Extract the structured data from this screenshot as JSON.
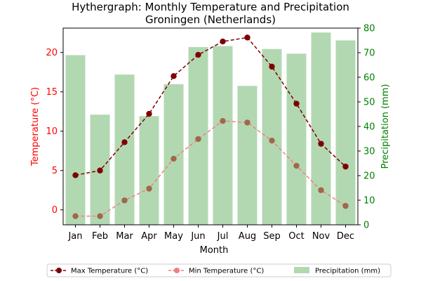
{
  "chart_data": {
    "type": "bar+line",
    "title": "Hythergraph: Monthly Temperature and Precipitation",
    "subtitle": "Groningen (Netherlands)",
    "xlabel": "Month",
    "ylabel_left": "Temperature (°C)",
    "ylabel_right": "Precipitation (mm)",
    "categories": [
      "Jan",
      "Feb",
      "Mar",
      "Apr",
      "May",
      "Jun",
      "Jul",
      "Aug",
      "Sep",
      "Oct",
      "Nov",
      "Dec"
    ],
    "ylim_left": [
      -1.9,
      23.1
    ],
    "ylim_right": [
      0,
      80
    ],
    "yticks_left": [
      0,
      5,
      10,
      15,
      20
    ],
    "yticks_right": [
      0,
      10,
      20,
      30,
      40,
      50,
      60,
      70,
      80
    ],
    "series": [
      {
        "name": "Max Temperature (°C)",
        "kind": "line",
        "axis": "left",
        "color": "#7f0000",
        "values": [
          4.4,
          5.0,
          8.6,
          12.2,
          17.0,
          19.7,
          21.4,
          21.9,
          18.2,
          13.5,
          8.4,
          5.5
        ]
      },
      {
        "name": "Min Temperature (°C)",
        "kind": "line",
        "axis": "left",
        "color": "#f08080",
        "values": [
          -0.8,
          -0.8,
          1.2,
          2.7,
          6.5,
          9.0,
          11.3,
          11.1,
          8.8,
          5.6,
          2.5,
          0.5
        ]
      },
      {
        "name": "Precipitation (mm)",
        "kind": "bar",
        "axis": "right",
        "color": "#b2d8b2",
        "values": [
          69.0,
          44.8,
          61.1,
          44.2,
          57.2,
          72.3,
          72.7,
          56.5,
          71.5,
          69.6,
          78.2,
          75.0
        ]
      }
    ],
    "colors": {
      "left_axis": "#ff0000",
      "right_axis": "#008000",
      "min_marker": "#a0674a"
    },
    "grid": false,
    "legend_position": "bottom"
  }
}
